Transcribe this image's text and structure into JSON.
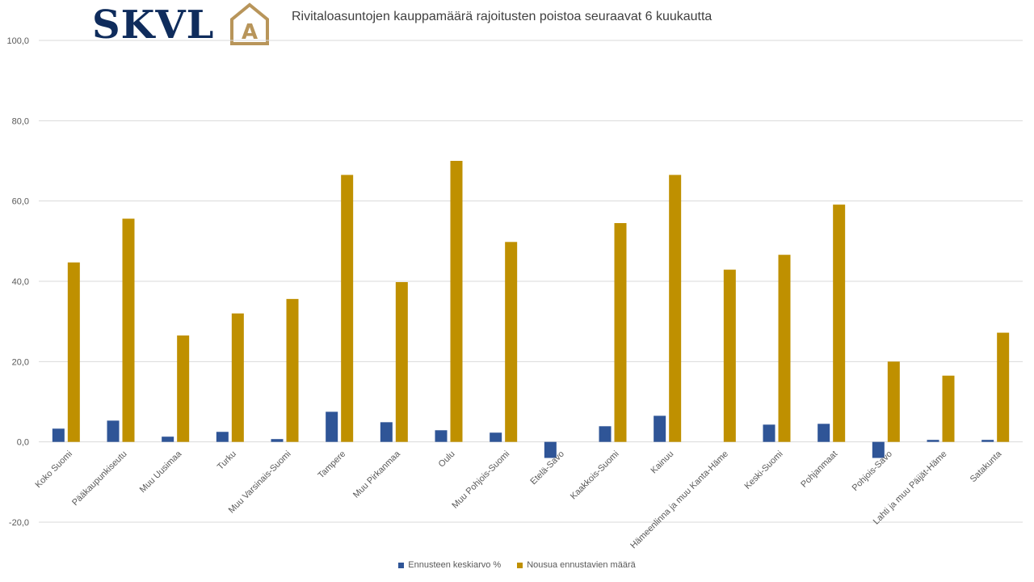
{
  "logo": {
    "text": "SKVL",
    "mark_letter": "A",
    "colors": {
      "text": "#0f2c5c",
      "mark": "#b8955a"
    }
  },
  "chart_data": {
    "type": "bar",
    "title": "Rivitaloasuntojen kauppamäärä rajoitusten poistoa seuraavat 6 kuukautta",
    "xlabel": "",
    "ylabel": "",
    "ylim": [
      -20,
      100
    ],
    "yticks": [
      "-20,0",
      "0,0",
      "20,0",
      "40,0",
      "60,0",
      "80,0",
      "100,0"
    ],
    "grid": true,
    "legend_position": "bottom",
    "categories": [
      "Koko Suomi",
      "Pääkaupunkiseutu",
      "Muu Uusimaa",
      "Turku",
      "Muu Varsinais-Suomi",
      "Tampere",
      "Muu Pirkanmaa",
      "Oulu",
      "Muu Pohjois-Suomi",
      "Etelä-Savo",
      "Kaakkois-Suomi",
      "Kainuu",
      "Hämeenlinna ja muu Kanta-Häme",
      "Keski-Suomi",
      "Pohjanmaat",
      "Pohjois-Savo",
      "Lahti ja muu Päijät-Häme",
      "Satakunta"
    ],
    "series": [
      {
        "name": "Ennusteen keskiarvo %",
        "color": "#2f5597",
        "values": [
          3.3,
          5.3,
          1.3,
          2.5,
          0.7,
          7.5,
          4.9,
          2.9,
          2.3,
          -4.0,
          3.9,
          6.5,
          0.0,
          4.3,
          4.5,
          -4.0,
          0.5,
          0.5
        ]
      },
      {
        "name": "Nousua ennustavien määrä",
        "color": "#bf9000",
        "values": [
          44.7,
          55.6,
          26.5,
          32.0,
          35.6,
          66.5,
          39.8,
          70.0,
          49.8,
          0.0,
          54.5,
          66.5,
          42.9,
          46.6,
          59.1,
          20.0,
          16.5,
          27.2
        ]
      }
    ]
  }
}
